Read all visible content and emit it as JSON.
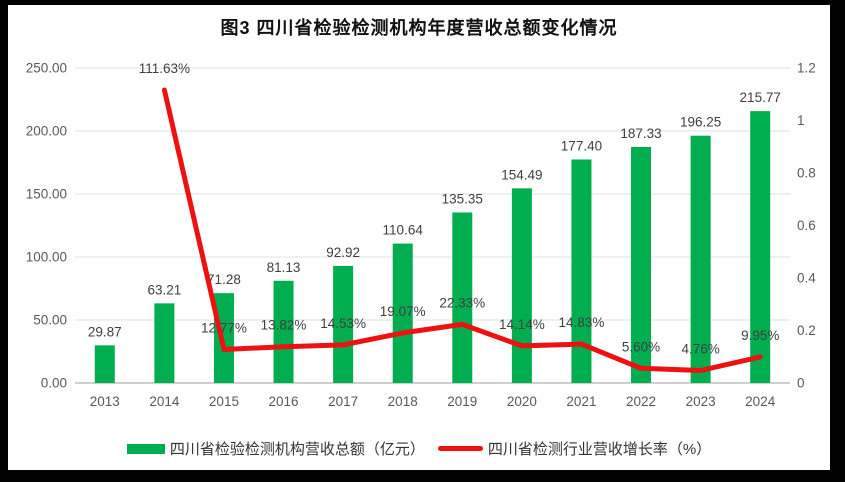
{
  "title": "图3  四川省检验检测机构年度营收总额变化情况",
  "colors": {
    "bar": "#00AE50",
    "line": "#ED1111",
    "grid": "#E2E2E2",
    "axis_line": "#BFBFBF",
    "axis_text": "#595959",
    "label_text": "#3F3F3F",
    "frame": "#000000",
    "background": "#FFFFFF"
  },
  "chart_data": {
    "type": "combo-bar-line",
    "title": "图3  四川省检验检测机构年度营收总额变化情况",
    "categories": [
      "2013",
      "2014",
      "2015",
      "2016",
      "2017",
      "2018",
      "2019",
      "2020",
      "2021",
      "2022",
      "2023",
      "2024"
    ],
    "series": [
      {
        "name": "四川省检验检测机构营收总额（亿元）",
        "type": "bar",
        "axis": "left",
        "values": [
          29.87,
          63.21,
          71.28,
          81.13,
          92.92,
          110.64,
          135.35,
          154.49,
          177.4,
          187.33,
          196.25,
          215.77
        ],
        "labels": [
          "29.87",
          "63.21",
          "71.28",
          "81.13",
          "92.92",
          "110.64",
          "135.35",
          "154.49",
          "177.40",
          "187.33",
          "196.25",
          "215.77"
        ]
      },
      {
        "name": "四川省检测行业营收增长率（%）",
        "type": "line",
        "axis": "right",
        "values_percent": [
          null,
          111.63,
          12.77,
          13.82,
          14.53,
          19.07,
          22.33,
          14.14,
          14.83,
          5.6,
          4.76,
          9.95
        ],
        "labels": [
          null,
          "111.63%",
          "12.77%",
          "13.82%",
          "14.53%",
          "19.07%",
          "22.33%",
          "14.14%",
          "14.83%",
          "5.60%",
          "4.76%",
          "9.95%"
        ]
      }
    ],
    "left_axis": {
      "min": 0,
      "max": 250,
      "ticks": [
        "0.00",
        "50.00",
        "100.00",
        "150.00",
        "200.00",
        "250.00"
      ]
    },
    "right_axis": {
      "min": 0,
      "max": 1.2,
      "ticks": [
        "0",
        "0.2",
        "0.4",
        "0.6",
        "0.8",
        "1",
        "1.2"
      ]
    },
    "grid": "horizontal",
    "legend_position": "bottom"
  },
  "legend": {
    "items": [
      {
        "label": "四川省检验检测机构营收总额（亿元）",
        "swatch": "bar"
      },
      {
        "label": "四川省检测行业营收增长率（%）",
        "swatch": "line"
      }
    ]
  }
}
